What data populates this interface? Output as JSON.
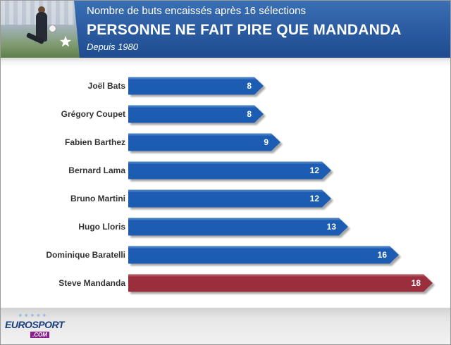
{
  "header": {
    "subtitle": "Nombre de buts encaissés après 16 sélections",
    "title": "PERSONNE NE FAIT PIRE QUE MANDANDA",
    "note": "Depuis 1980"
  },
  "footer": {
    "logo_word": "EUROSPORT",
    "logo_domain": ".COM"
  },
  "colors": {
    "bar": "#1f5bb3",
    "highlight": "#9b2f3e",
    "header": "#2a5aa0"
  },
  "chart_data": {
    "type": "bar",
    "orientation": "horizontal",
    "categories": [
      "Joël Bats",
      "Grégory Coupet",
      "Fabien Barthez",
      "Bernard Lama",
      "Bruno Martini",
      "Hugo Lloris",
      "Dominique Baratelli",
      "Steve Mandanda"
    ],
    "values": [
      8,
      8,
      9,
      12,
      12,
      13,
      16,
      18
    ],
    "highlight": "Steve Mandanda",
    "title": "PERSONNE NE FAIT PIRE QUE MANDANDA",
    "subtitle": "Nombre de buts encaissés après 16 sélections",
    "annotation": "Depuis 1980",
    "xlabel": "",
    "ylabel": "",
    "xlim": [
      0,
      18
    ],
    "grid": false,
    "legend": "none",
    "data_labels": true
  }
}
